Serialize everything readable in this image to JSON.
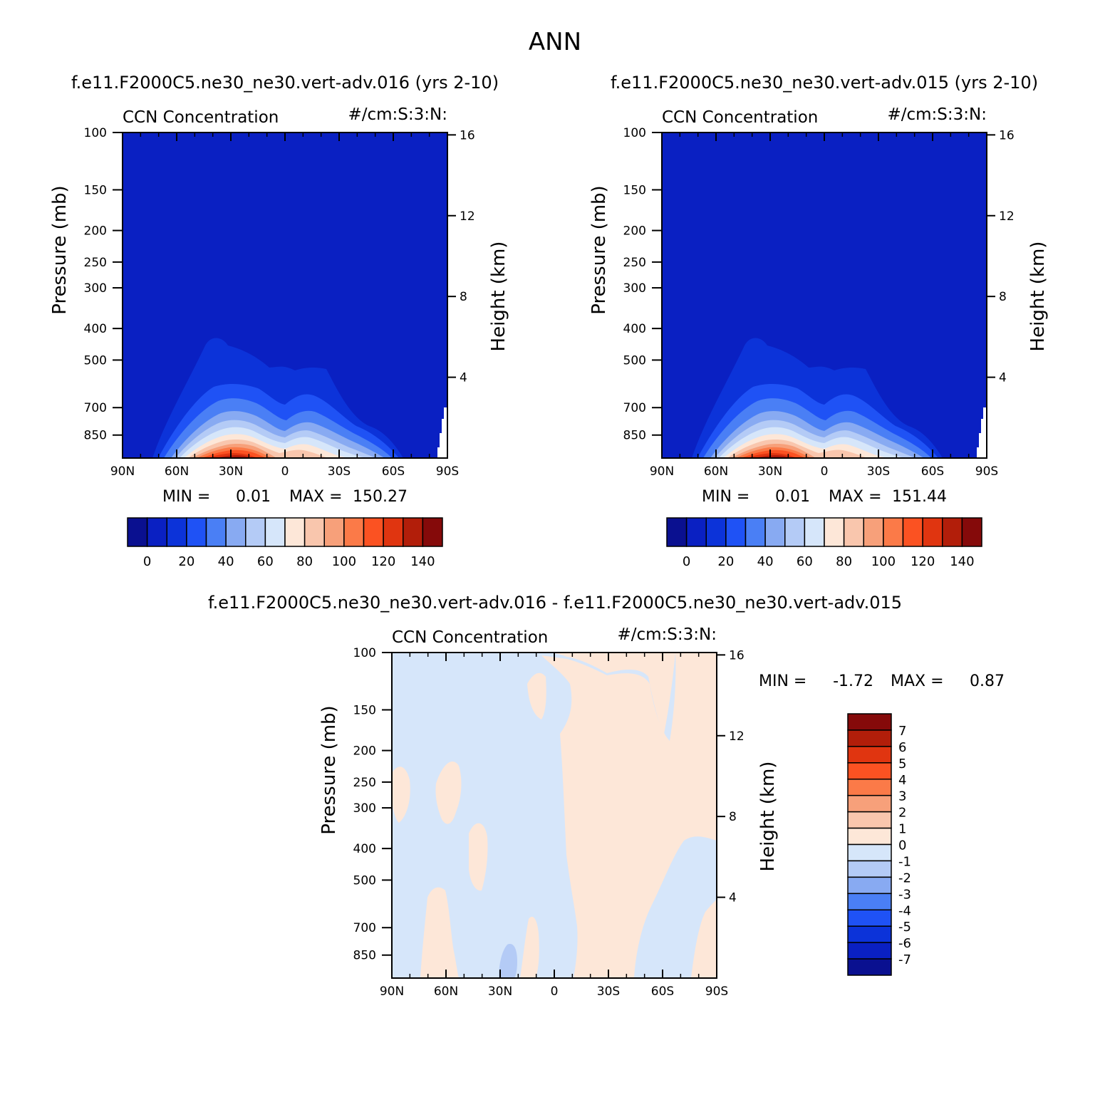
{
  "figure": {
    "title": "ANN",
    "footer": ""
  },
  "colors": {
    "abs_palette": [
      "#0a1090",
      "#0a20c2",
      "#0c33d9",
      "#1f52f5",
      "#4a7ff5",
      "#88aaf2",
      "#b4cbf6",
      "#d6e6fa",
      "#fde7d8",
      "#f9c6ad",
      "#f7a07a",
      "#fb7a48",
      "#fb5222",
      "#e03510",
      "#b21e0a",
      "#850a0a"
    ],
    "diff_palette": [
      "#0a1090",
      "#0a20c2",
      "#0c33d9",
      "#1f52f5",
      "#4a7ff5",
      "#88aaf2",
      "#b4cbf6",
      "#d6e6fa",
      "#fde7d8",
      "#f9c6ad",
      "#f7a07a",
      "#fb7a48",
      "#fb5222",
      "#e03510",
      "#b21e0a",
      "#850a0a"
    ]
  },
  "chart_data": [
    {
      "type": "heatmap",
      "case_title": "f.e11.F2000C5.ne30_ne30.vert-adv.016 (yrs 2-10)",
      "variable": "CCN Concentration",
      "units": "#/cm:S:3:N:",
      "ylabel": "Pressure (mb)",
      "ylabel_right": "Height (km)",
      "x_ticks": [
        "90N",
        "60N",
        "30N",
        "0",
        "30S",
        "60S",
        "90S"
      ],
      "x_values": [
        90,
        60,
        30,
        0,
        -30,
        -60,
        -90
      ],
      "xlim": [
        90,
        -90
      ],
      "y_ticks": [
        100,
        150,
        200,
        250,
        300,
        400,
        500,
        700,
        850
      ],
      "ylim": [
        100,
        1000
      ],
      "y_scale": "log",
      "y_right_ticks": [
        16,
        12,
        8,
        4
      ],
      "min_label": "MIN =",
      "min_value": "0.01",
      "max_label": "MAX =",
      "max_value": "150.27",
      "colorbar_labels": [
        "0",
        "20",
        "40",
        "60",
        "80",
        "100",
        "120",
        "140"
      ],
      "colorbar_levels": [
        0,
        10,
        20,
        30,
        40,
        50,
        60,
        70,
        80,
        90,
        100,
        110,
        120,
        130,
        140
      ],
      "field_peaks": [
        {
          "lat": 26,
          "value": 150
        },
        {
          "lat": -10,
          "value": 80
        }
      ]
    },
    {
      "type": "heatmap",
      "case_title": "f.e11.F2000C5.ne30_ne30.vert-adv.015 (yrs 2-10)",
      "variable": "CCN Concentration",
      "units": "#/cm:S:3:N:",
      "ylabel": "Pressure (mb)",
      "ylabel_right": "Height (km)",
      "x_ticks": [
        "90N",
        "60N",
        "30N",
        "0",
        "30S",
        "60S",
        "90S"
      ],
      "x_values": [
        90,
        60,
        30,
        0,
        -30,
        -60,
        -90
      ],
      "xlim": [
        90,
        -90
      ],
      "y_ticks": [
        100,
        150,
        200,
        250,
        300,
        400,
        500,
        700,
        850
      ],
      "ylim": [
        100,
        1000
      ],
      "y_scale": "log",
      "y_right_ticks": [
        16,
        12,
        8,
        4
      ],
      "min_label": "MIN =",
      "min_value": "0.01",
      "max_label": "MAX =",
      "max_value": "151.44",
      "colorbar_labels": [
        "0",
        "20",
        "40",
        "60",
        "80",
        "100",
        "120",
        "140"
      ],
      "colorbar_levels": [
        0,
        10,
        20,
        30,
        40,
        50,
        60,
        70,
        80,
        90,
        100,
        110,
        120,
        130,
        140
      ],
      "field_peaks": [
        {
          "lat": 26,
          "value": 151
        },
        {
          "lat": -10,
          "value": 80
        }
      ]
    },
    {
      "type": "heatmap",
      "case_title": "f.e11.F2000C5.ne30_ne30.vert-adv.016 - f.e11.F2000C5.ne30_ne30.vert-adv.015",
      "variable": "CCN Concentration",
      "units": "#/cm:S:3:N:",
      "ylabel": "Pressure (mb)",
      "ylabel_right": "Height (km)",
      "x_ticks": [
        "90N",
        "60N",
        "30N",
        "0",
        "30S",
        "60S",
        "90S"
      ],
      "x_values": [
        90,
        60,
        30,
        0,
        -30,
        -60,
        -90
      ],
      "xlim": [
        90,
        -90
      ],
      "y_ticks": [
        100,
        150,
        200,
        250,
        300,
        400,
        500,
        700,
        850
      ],
      "ylim": [
        100,
        1000
      ],
      "y_scale": "log",
      "y_right_ticks": [
        16,
        12,
        8,
        4
      ],
      "min_label": "MIN =",
      "min_value": "-1.72",
      "max_label": "MAX =",
      "max_value": "0.87",
      "colorbar_labels": [
        "7",
        "6",
        "5",
        "4",
        "3",
        "2",
        "1",
        "0",
        "-1",
        "-2",
        "-3",
        "-4",
        "-5",
        "-6",
        "-7"
      ],
      "colorbar_levels": [
        -7,
        -6,
        -5,
        -4,
        -3,
        -2,
        -1,
        0,
        1,
        2,
        3,
        4,
        5,
        6,
        7
      ]
    }
  ]
}
